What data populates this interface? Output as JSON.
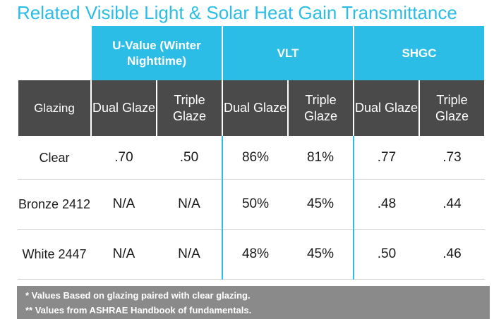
{
  "title": "Related Visible Light & Solar Heat Gain Transmittance",
  "groups": {
    "uvalue": "U-Value (Winter Nighttime)",
    "vlt": "VLT",
    "shgc": "SHGC"
  },
  "subheaders": {
    "glazing": "Glazing",
    "dual": "Dual Glaze",
    "triple": "Triple Glaze"
  },
  "rows": [
    {
      "name": "Clear",
      "u_dual": ".70",
      "u_triple": ".50",
      "vlt_dual": "86%",
      "vlt_triple": "81%",
      "shgc_dual": ".77",
      "shgc_triple": ".73"
    },
    {
      "name": "Bronze 2412",
      "u_dual": "N/A",
      "u_triple": "N/A",
      "vlt_dual": "50%",
      "vlt_triple": "45%",
      "shgc_dual": ".48",
      "shgc_triple": ".44"
    },
    {
      "name": "White 2447",
      "u_dual": "N/A",
      "u_triple": "N/A",
      "vlt_dual": "48%",
      "vlt_triple": "45%",
      "shgc_dual": ".50",
      "shgc_triple": ".46"
    }
  ],
  "notes": [
    "* Values Based on glazing paired with clear glazing.",
    "** Values from ASHRAE Handbook of fundamentals."
  ],
  "colors": {
    "accent": "#2cbde6",
    "header_dark": "#4a4a4a",
    "notes_bg": "#8a8a8a"
  }
}
